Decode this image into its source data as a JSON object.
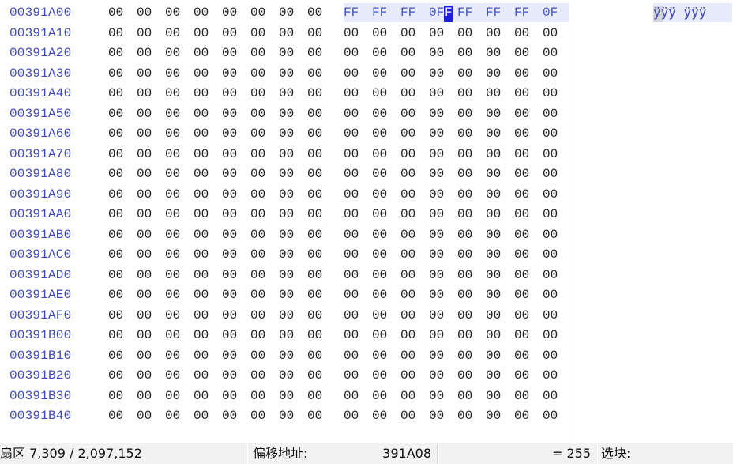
{
  "rows": [
    {
      "offset": "00391A00",
      "bytes": [
        "00",
        "00",
        "00",
        "00",
        "00",
        "00",
        "00",
        "00",
        "FF",
        "FF",
        "FF",
        "0F",
        "FF",
        "FF",
        "FF",
        "0F"
      ]
    },
    {
      "offset": "00391A10",
      "bytes": [
        "00",
        "00",
        "00",
        "00",
        "00",
        "00",
        "00",
        "00",
        "00",
        "00",
        "00",
        "00",
        "00",
        "00",
        "00",
        "00"
      ]
    },
    {
      "offset": "00391A20",
      "bytes": [
        "00",
        "00",
        "00",
        "00",
        "00",
        "00",
        "00",
        "00",
        "00",
        "00",
        "00",
        "00",
        "00",
        "00",
        "00",
        "00"
      ]
    },
    {
      "offset": "00391A30",
      "bytes": [
        "00",
        "00",
        "00",
        "00",
        "00",
        "00",
        "00",
        "00",
        "00",
        "00",
        "00",
        "00",
        "00",
        "00",
        "00",
        "00"
      ]
    },
    {
      "offset": "00391A40",
      "bytes": [
        "00",
        "00",
        "00",
        "00",
        "00",
        "00",
        "00",
        "00",
        "00",
        "00",
        "00",
        "00",
        "00",
        "00",
        "00",
        "00"
      ]
    },
    {
      "offset": "00391A50",
      "bytes": [
        "00",
        "00",
        "00",
        "00",
        "00",
        "00",
        "00",
        "00",
        "00",
        "00",
        "00",
        "00",
        "00",
        "00",
        "00",
        "00"
      ]
    },
    {
      "offset": "00391A60",
      "bytes": [
        "00",
        "00",
        "00",
        "00",
        "00",
        "00",
        "00",
        "00",
        "00",
        "00",
        "00",
        "00",
        "00",
        "00",
        "00",
        "00"
      ]
    },
    {
      "offset": "00391A70",
      "bytes": [
        "00",
        "00",
        "00",
        "00",
        "00",
        "00",
        "00",
        "00",
        "00",
        "00",
        "00",
        "00",
        "00",
        "00",
        "00",
        "00"
      ]
    },
    {
      "offset": "00391A80",
      "bytes": [
        "00",
        "00",
        "00",
        "00",
        "00",
        "00",
        "00",
        "00",
        "00",
        "00",
        "00",
        "00",
        "00",
        "00",
        "00",
        "00"
      ]
    },
    {
      "offset": "00391A90",
      "bytes": [
        "00",
        "00",
        "00",
        "00",
        "00",
        "00",
        "00",
        "00",
        "00",
        "00",
        "00",
        "00",
        "00",
        "00",
        "00",
        "00"
      ]
    },
    {
      "offset": "00391AA0",
      "bytes": [
        "00",
        "00",
        "00",
        "00",
        "00",
        "00",
        "00",
        "00",
        "00",
        "00",
        "00",
        "00",
        "00",
        "00",
        "00",
        "00"
      ]
    },
    {
      "offset": "00391AB0",
      "bytes": [
        "00",
        "00",
        "00",
        "00",
        "00",
        "00",
        "00",
        "00",
        "00",
        "00",
        "00",
        "00",
        "00",
        "00",
        "00",
        "00"
      ]
    },
    {
      "offset": "00391AC0",
      "bytes": [
        "00",
        "00",
        "00",
        "00",
        "00",
        "00",
        "00",
        "00",
        "00",
        "00",
        "00",
        "00",
        "00",
        "00",
        "00",
        "00"
      ]
    },
    {
      "offset": "00391AD0",
      "bytes": [
        "00",
        "00",
        "00",
        "00",
        "00",
        "00",
        "00",
        "00",
        "00",
        "00",
        "00",
        "00",
        "00",
        "00",
        "00",
        "00"
      ]
    },
    {
      "offset": "00391AE0",
      "bytes": [
        "00",
        "00",
        "00",
        "00",
        "00",
        "00",
        "00",
        "00",
        "00",
        "00",
        "00",
        "00",
        "00",
        "00",
        "00",
        "00"
      ]
    },
    {
      "offset": "00391AF0",
      "bytes": [
        "00",
        "00",
        "00",
        "00",
        "00",
        "00",
        "00",
        "00",
        "00",
        "00",
        "00",
        "00",
        "00",
        "00",
        "00",
        "00"
      ]
    },
    {
      "offset": "00391B00",
      "bytes": [
        "00",
        "00",
        "00",
        "00",
        "00",
        "00",
        "00",
        "00",
        "00",
        "00",
        "00",
        "00",
        "00",
        "00",
        "00",
        "00"
      ]
    },
    {
      "offset": "00391B10",
      "bytes": [
        "00",
        "00",
        "00",
        "00",
        "00",
        "00",
        "00",
        "00",
        "00",
        "00",
        "00",
        "00",
        "00",
        "00",
        "00",
        "00"
      ]
    },
    {
      "offset": "00391B20",
      "bytes": [
        "00",
        "00",
        "00",
        "00",
        "00",
        "00",
        "00",
        "00",
        "00",
        "00",
        "00",
        "00",
        "00",
        "00",
        "00",
        "00"
      ]
    },
    {
      "offset": "00391B30",
      "bytes": [
        "00",
        "00",
        "00",
        "00",
        "00",
        "00",
        "00",
        "00",
        "00",
        "00",
        "00",
        "00",
        "00",
        "00",
        "00",
        "00"
      ]
    },
    {
      "offset": "00391B40",
      "bytes": [
        "00",
        "00",
        "00",
        "00",
        "00",
        "00",
        "00",
        "00",
        "00",
        "00",
        "00",
        "00",
        "00",
        "00",
        "00",
        "00"
      ]
    }
  ],
  "ascii": {
    "row_0": "ÿÿÿ ÿÿÿ"
  },
  "status": {
    "sector": "扇区 7,309 / 2,097,152",
    "offset_label": "偏移地址:",
    "offset_value": "391A08",
    "value_text": "= 255",
    "block_label": "选块:"
  },
  "colors": {
    "offset_text": "#3f49b8",
    "selected_bytes": "#4554c7",
    "selection_bg": "#e8ebfb",
    "cursor": "#2020d8"
  }
}
